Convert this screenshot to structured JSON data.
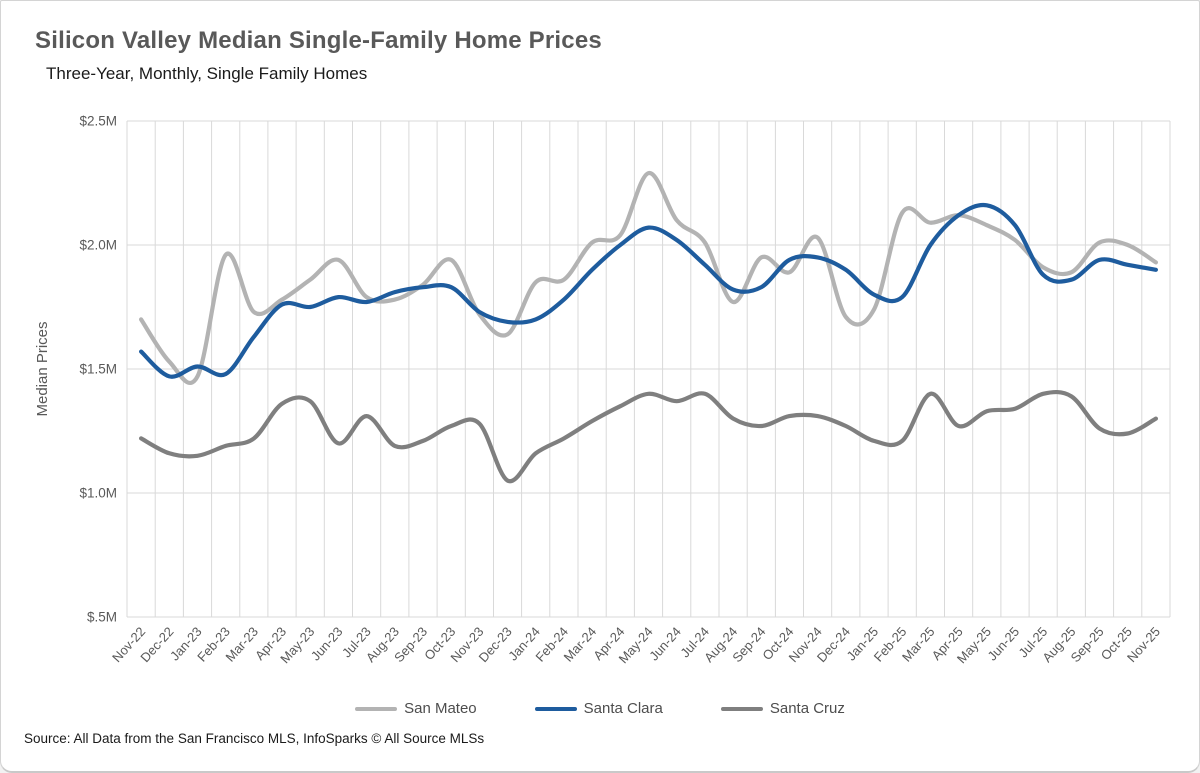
{
  "header": {
    "title": "Silicon Valley Median Single-Family Home Prices",
    "subtitle": "Three-Year, Monthly, Single Family Homes"
  },
  "footer": {
    "source": "Source: All Data from the San Francisco MLS, InfoSparks © All Source MLSs"
  },
  "chart_data": {
    "type": "line",
    "title": "Silicon Valley Median Single-Family Home Prices",
    "subtitle": "Three-Year, Monthly, Single Family Homes",
    "xlabel": "",
    "ylabel": "Median Prices",
    "unit": "millions of dollars",
    "ylim": [
      0.5,
      2.5
    ],
    "grid": true,
    "legend_position": "bottom",
    "yticks": [
      {
        "value": 2.5,
        "label": "$2.5M"
      },
      {
        "value": 2.0,
        "label": "$2.0M"
      },
      {
        "value": 1.5,
        "label": "$1.5M"
      },
      {
        "value": 1.0,
        "label": "$1.0M"
      },
      {
        "value": 0.5,
        "label": "$.5M"
      }
    ],
    "categories": [
      "Nov-22",
      "Dec-22",
      "Jan-23",
      "Feb-23",
      "Mar-23",
      "Apr-23",
      "May-23",
      "Jun-23",
      "Jul-23",
      "Aug-23",
      "Sep-23",
      "Oct-23",
      "Nov-23",
      "Dec-23",
      "Jan-24",
      "Feb-24",
      "Mar-24",
      "Apr-24",
      "May-24",
      "Jun-24",
      "Jul-24",
      "Aug-24",
      "Sep-24",
      "Oct-24",
      "Nov-24",
      "Dec-24",
      "Jan-25",
      "Feb-25",
      "Mar-25",
      "Apr-25",
      "May-25",
      "Jun-25",
      "Jul-25",
      "Aug-25",
      "Sep-25",
      "Oct-25",
      "Nov-25"
    ],
    "series": [
      {
        "name": "San Mateo",
        "color": "#b3b3b3",
        "values": [
          1.7,
          1.53,
          1.47,
          1.96,
          1.73,
          1.78,
          1.86,
          1.94,
          1.79,
          1.78,
          1.84,
          1.94,
          1.72,
          1.64,
          1.85,
          1.86,
          2.01,
          2.04,
          2.29,
          2.1,
          2.01,
          1.77,
          1.95,
          1.89,
          2.03,
          1.71,
          1.74,
          2.13,
          2.09,
          2.12,
          2.08,
          2.02,
          1.91,
          1.89,
          2.01,
          2.0,
          1.93
        ]
      },
      {
        "name": "Santa Clara",
        "color": "#1e5c9e",
        "values": [
          1.57,
          1.47,
          1.51,
          1.48,
          1.63,
          1.76,
          1.75,
          1.79,
          1.77,
          1.81,
          1.83,
          1.83,
          1.73,
          1.69,
          1.7,
          1.78,
          1.9,
          2.0,
          2.07,
          2.02,
          1.92,
          1.82,
          1.83,
          1.94,
          1.95,
          1.9,
          1.8,
          1.79,
          2.0,
          2.12,
          2.16,
          2.08,
          1.88,
          1.86,
          1.94,
          1.92,
          1.9
        ]
      },
      {
        "name": "Santa Cruz",
        "color": "#7f7f7f",
        "values": [
          1.22,
          1.16,
          1.15,
          1.19,
          1.22,
          1.36,
          1.37,
          1.2,
          1.31,
          1.19,
          1.21,
          1.27,
          1.28,
          1.05,
          1.16,
          1.22,
          1.29,
          1.35,
          1.4,
          1.37,
          1.4,
          1.3,
          1.27,
          1.31,
          1.31,
          1.27,
          1.21,
          1.21,
          1.4,
          1.27,
          1.33,
          1.34,
          1.4,
          1.39,
          1.26,
          1.24,
          1.3
        ]
      }
    ]
  }
}
